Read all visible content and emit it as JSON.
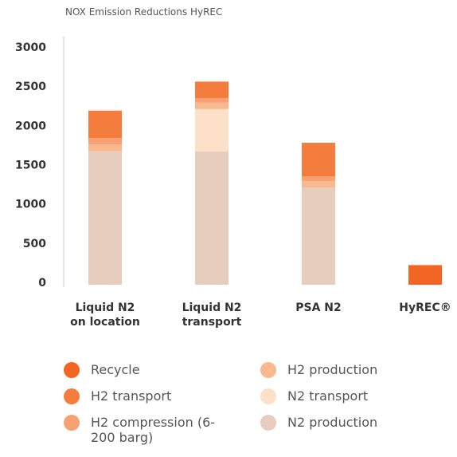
{
  "chart_data": {
    "type": "stacked_bar",
    "title": "NOX Emission Reductions HyREC",
    "categories": [
      "Liquid N2 on location",
      "Liquid N2 transport",
      "PSA N2",
      "HyREC®"
    ],
    "series": [
      {
        "name": "N2 production",
        "color": "#e6cdbd",
        "values": [
          1700,
          1700,
          1240,
          0
        ]
      },
      {
        "name": "N2 transport",
        "color": "#fde0c8",
        "values": [
          0,
          540,
          0,
          0
        ]
      },
      {
        "name": "H2 production",
        "color": "#f9b98f",
        "values": [
          90,
          80,
          80,
          0
        ]
      },
      {
        "name": "H2 compression (6-200 barg)",
        "color": "#f7a072",
        "values": [
          80,
          60,
          60,
          0
        ]
      },
      {
        "name": "H2 transport",
        "color": "#f47c3c",
        "values": [
          350,
          210,
          430,
          0
        ]
      },
      {
        "name": "Recycle",
        "color": "#f26522",
        "values": [
          0,
          0,
          0,
          250
        ]
      }
    ],
    "ylim": [
      0,
      3000
    ],
    "yticks": [
      0,
      500,
      1000,
      1500,
      2000,
      2500,
      3000
    ],
    "grid": false
  }
}
